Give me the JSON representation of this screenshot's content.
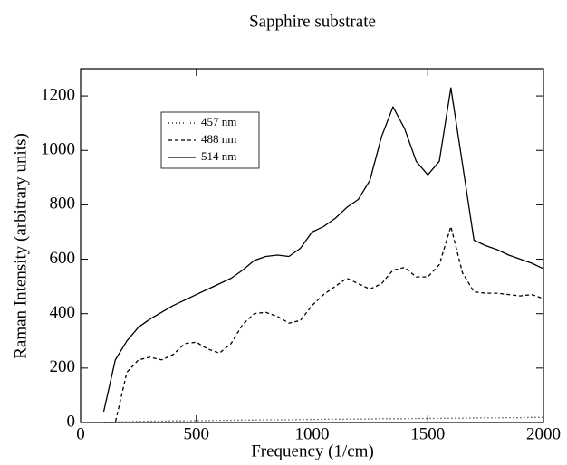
{
  "chart_data": {
    "type": "line",
    "title": "Sapphire substrate",
    "x_label": "Frequency (1/cm)",
    "y_label": "Raman Intensity (arbitrary units)",
    "x": [
      100,
      150,
      200,
      250,
      300,
      350,
      400,
      450,
      500,
      550,
      600,
      650,
      700,
      750,
      800,
      850,
      900,
      950,
      1000,
      1050,
      1100,
      1150,
      1200,
      1250,
      1300,
      1350,
      1400,
      1450,
      1500,
      1550,
      1600,
      1650,
      1700,
      1750,
      1800,
      1850,
      1900,
      1950,
      2000
    ],
    "series": [
      {
        "name": "457 nm",
        "color": "#000000",
        "dash": "1 3",
        "values": [
          0,
          2,
          3,
          4,
          5,
          5,
          6,
          6,
          7,
          7,
          8,
          8,
          9,
          9,
          10,
          10,
          10,
          11,
          11,
          12,
          12,
          12,
          13,
          13,
          14,
          14,
          14,
          15,
          15,
          15,
          16,
          16,
          17,
          17,
          17,
          18,
          18,
          19,
          19
        ]
      },
      {
        "name": "488 nm",
        "color": "#000000",
        "dash": "4 3",
        "values": [
          0,
          0,
          185,
          230,
          240,
          230,
          250,
          290,
          295,
          270,
          255,
          290,
          360,
          400,
          405,
          390,
          365,
          375,
          430,
          470,
          500,
          530,
          510,
          490,
          510,
          560,
          570,
          535,
          535,
          580,
          720,
          550,
          480,
          475,
          475,
          470,
          465,
          470,
          455
        ]
      },
      {
        "name": "514 nm",
        "color": "#000000",
        "dash": "none",
        "values": [
          40,
          230,
          300,
          350,
          380,
          405,
          430,
          450,
          470,
          490,
          510,
          530,
          560,
          595,
          610,
          615,
          610,
          640,
          700,
          720,
          750,
          790,
          820,
          890,
          1050,
          1160,
          1080,
          960,
          910,
          960,
          1230,
          950,
          670,
          650,
          635,
          615,
          600,
          585,
          565
        ]
      }
    ],
    "xlim": [
      0,
      2000
    ],
    "xticks": [
      0,
      500,
      1000,
      1500,
      2000
    ],
    "ylim": [
      0,
      1300
    ],
    "yticks": [
      0,
      200,
      400,
      600,
      800,
      1000,
      1200
    ],
    "grid": false,
    "legend": "upper-left"
  }
}
